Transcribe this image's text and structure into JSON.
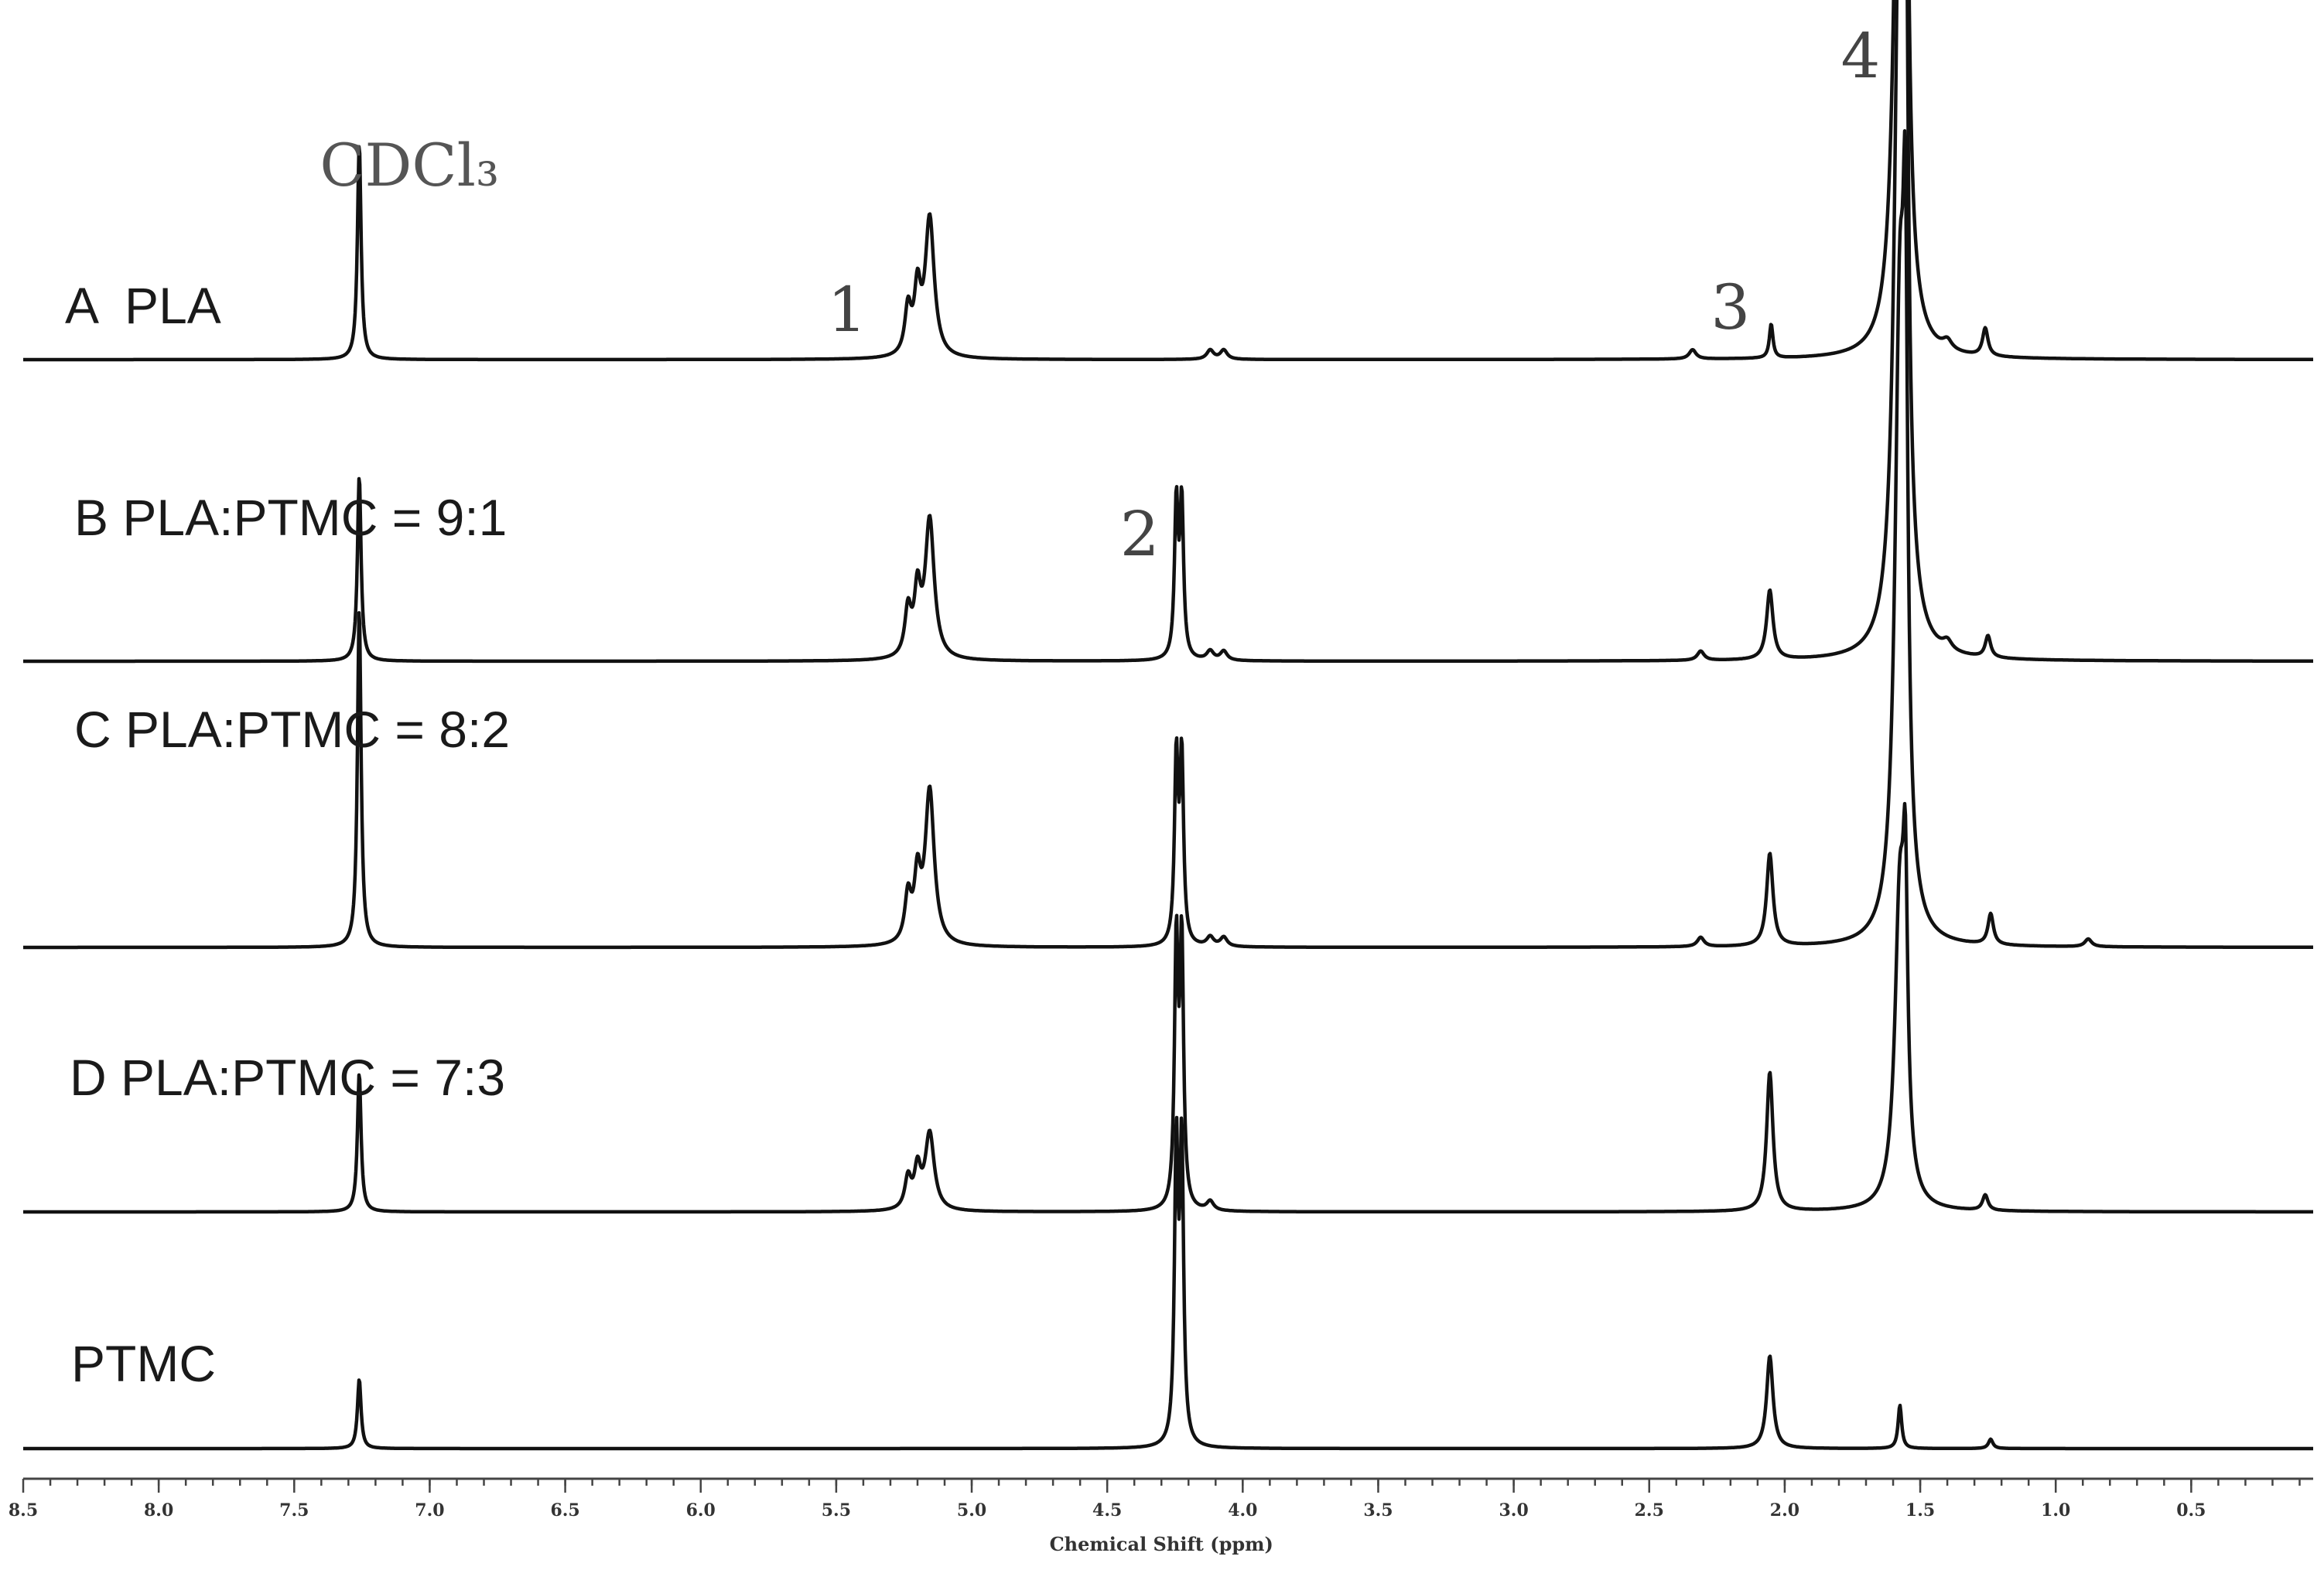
{
  "chart_data": {
    "type": "line",
    "title": "",
    "xlabel": "Chemical Shift (ppm)",
    "ylabel": "",
    "xlim": [
      8.5,
      0.05
    ],
    "x_reversed": true,
    "grid": false,
    "x_ticks": [
      {
        "value": 8.5,
        "label": "8.5"
      },
      {
        "value": 8.0,
        "label": "8.0"
      },
      {
        "value": 7.5,
        "label": "7.5"
      },
      {
        "value": 7.0,
        "label": "7.0"
      },
      {
        "value": 6.5,
        "label": "6.5"
      },
      {
        "value": 6.0,
        "label": "6.0"
      },
      {
        "value": 5.5,
        "label": "5.5"
      },
      {
        "value": 5.0,
        "label": "5.0"
      },
      {
        "value": 4.5,
        "label": "4.5"
      },
      {
        "value": 4.0,
        "label": "4.0"
      },
      {
        "value": 3.5,
        "label": "3.5"
      },
      {
        "value": 3.0,
        "label": "3.0"
      },
      {
        "value": 2.5,
        "label": "2.5"
      },
      {
        "value": 2.0,
        "label": "2.0"
      },
      {
        "value": 1.5,
        "label": "1.5"
      },
      {
        "value": 1.0,
        "label": "1.0"
      },
      {
        "value": 0.5,
        "label": "0.5"
      }
    ],
    "series": [
      {
        "name": "A  PLA",
        "peaks": [
          {
            "ppm": 7.26,
            "height": 0.14,
            "width": 0.008
          },
          {
            "ppm": 5.235,
            "height": 0.03,
            "width": 0.014
          },
          {
            "ppm": 5.2,
            "height": 0.04,
            "width": 0.014
          },
          {
            "ppm": 5.155,
            "height": 0.09,
            "width": 0.02
          },
          {
            "ppm": 4.12,
            "height": 0.006,
            "width": 0.015
          },
          {
            "ppm": 4.07,
            "height": 0.006,
            "width": 0.015
          },
          {
            "ppm": 2.34,
            "height": 0.006,
            "width": 0.015
          },
          {
            "ppm": 2.05,
            "height": 0.022,
            "width": 0.008
          },
          {
            "ppm": 1.575,
            "height": 0.46,
            "width": 0.022
          },
          {
            "ppm": 1.555,
            "height": 0.3,
            "width": 0.01
          },
          {
            "ppm": 1.4,
            "height": 0.006,
            "width": 0.02
          },
          {
            "ppm": 1.26,
            "height": 0.018,
            "width": 0.012
          }
        ]
      },
      {
        "name": "B PLA:PTMC = 9:1",
        "peaks": [
          {
            "ppm": 7.26,
            "height": 0.12,
            "width": 0.008
          },
          {
            "ppm": 5.235,
            "height": 0.03,
            "width": 0.014
          },
          {
            "ppm": 5.2,
            "height": 0.04,
            "width": 0.014
          },
          {
            "ppm": 5.155,
            "height": 0.09,
            "width": 0.02
          },
          {
            "ppm": 4.245,
            "height": 0.1,
            "width": 0.008
          },
          {
            "ppm": 4.225,
            "height": 0.1,
            "width": 0.008
          },
          {
            "ppm": 4.12,
            "height": 0.006,
            "width": 0.015
          },
          {
            "ppm": 4.07,
            "height": 0.006,
            "width": 0.015
          },
          {
            "ppm": 2.31,
            "height": 0.006,
            "width": 0.015
          },
          {
            "ppm": 2.055,
            "height": 0.045,
            "width": 0.014
          },
          {
            "ppm": 1.575,
            "height": 0.5,
            "width": 0.022
          },
          {
            "ppm": 1.555,
            "height": 0.36,
            "width": 0.01
          },
          {
            "ppm": 1.4,
            "height": 0.006,
            "width": 0.02
          },
          {
            "ppm": 1.25,
            "height": 0.014,
            "width": 0.012
          }
        ]
      },
      {
        "name": "C PLA:PTMC = 8:2",
        "peaks": [
          {
            "ppm": 7.26,
            "height": 0.22,
            "width": 0.008
          },
          {
            "ppm": 5.235,
            "height": 0.03,
            "width": 0.014
          },
          {
            "ppm": 5.2,
            "height": 0.04,
            "width": 0.014
          },
          {
            "ppm": 5.155,
            "height": 0.1,
            "width": 0.02
          },
          {
            "ppm": 4.245,
            "height": 0.12,
            "width": 0.008
          },
          {
            "ppm": 4.225,
            "height": 0.12,
            "width": 0.008
          },
          {
            "ppm": 4.12,
            "height": 0.006,
            "width": 0.015
          },
          {
            "ppm": 4.07,
            "height": 0.006,
            "width": 0.015
          },
          {
            "ppm": 2.31,
            "height": 0.006,
            "width": 0.015
          },
          {
            "ppm": 2.055,
            "height": 0.06,
            "width": 0.014
          },
          {
            "ppm": 1.575,
            "height": 0.4,
            "width": 0.022
          },
          {
            "ppm": 1.555,
            "height": 0.3,
            "width": 0.01
          },
          {
            "ppm": 1.24,
            "height": 0.02,
            "width": 0.012
          },
          {
            "ppm": 0.88,
            "height": 0.005,
            "width": 0.015
          }
        ]
      },
      {
        "name": "D PLA:PTMC = 7:3",
        "peaks": [
          {
            "ppm": 7.26,
            "height": 0.09,
            "width": 0.008
          },
          {
            "ppm": 5.235,
            "height": 0.02,
            "width": 0.014
          },
          {
            "ppm": 5.2,
            "height": 0.025,
            "width": 0.014
          },
          {
            "ppm": 5.155,
            "height": 0.05,
            "width": 0.02
          },
          {
            "ppm": 4.245,
            "height": 0.17,
            "width": 0.008
          },
          {
            "ppm": 4.225,
            "height": 0.17,
            "width": 0.008
          },
          {
            "ppm": 4.12,
            "height": 0.006,
            "width": 0.015
          },
          {
            "ppm": 2.055,
            "height": 0.09,
            "width": 0.014
          },
          {
            "ppm": 1.575,
            "height": 0.2,
            "width": 0.022
          },
          {
            "ppm": 1.555,
            "height": 0.15,
            "width": 0.01
          },
          {
            "ppm": 1.26,
            "height": 0.01,
            "width": 0.012
          }
        ]
      },
      {
        "name": "PTMC",
        "peaks": [
          {
            "ppm": 7.26,
            "height": 0.045,
            "width": 0.008
          },
          {
            "ppm": 4.245,
            "height": 0.19,
            "width": 0.008
          },
          {
            "ppm": 4.225,
            "height": 0.19,
            "width": 0.008
          },
          {
            "ppm": 2.055,
            "height": 0.06,
            "width": 0.014
          },
          {
            "ppm": 1.575,
            "height": 0.028,
            "width": 0.008
          },
          {
            "ppm": 1.24,
            "height": 0.006,
            "width": 0.01
          }
        ]
      }
    ],
    "annotations": [
      {
        "text": "CDCl₃",
        "ppm": 7.26
      },
      {
        "text": "1",
        "ppm": 5.46
      },
      {
        "text": "2",
        "ppm": 4.38
      },
      {
        "text": "3",
        "ppm": 2.2
      },
      {
        "text": "4",
        "ppm": 1.72
      }
    ]
  }
}
